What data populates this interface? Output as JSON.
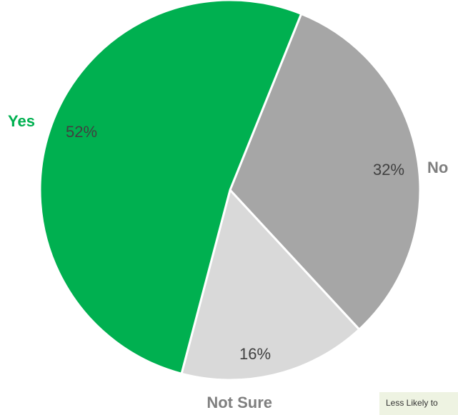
{
  "chart_data": {
    "type": "pie",
    "categories": [
      "Yes",
      "No",
      "Not Sure"
    ],
    "values": [
      52,
      32,
      16
    ],
    "value_labels": [
      "52%",
      "32%",
      "16%"
    ],
    "colors": [
      "#00b050",
      "#a6a6a6",
      "#d9d9d9"
    ],
    "label_colors": [
      "#00b050",
      "#7f7f7f",
      "#7f7f7f"
    ],
    "start_angle_deg": 22,
    "direction": "clockwise",
    "slice_order": [
      "No",
      "Not Sure",
      "Yes"
    ],
    "title": ""
  },
  "note": {
    "text": "Less Likely to"
  }
}
